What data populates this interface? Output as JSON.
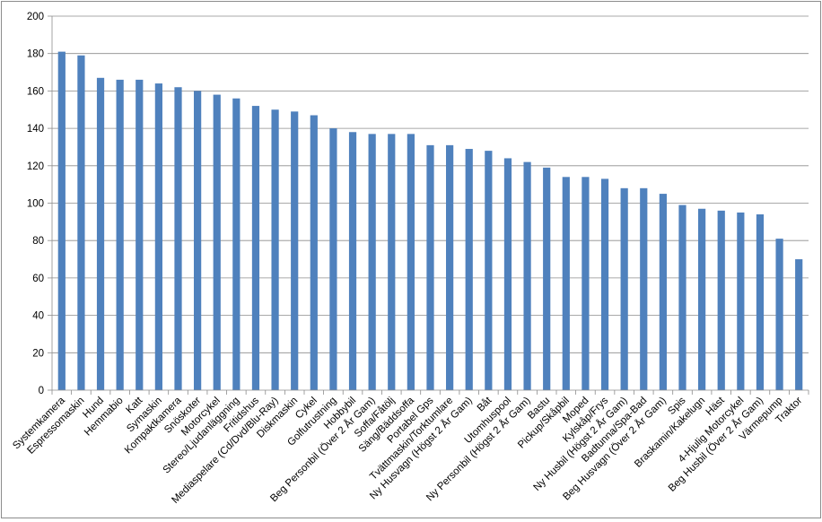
{
  "chart_data": {
    "type": "bar",
    "title": "",
    "xlabel": "",
    "ylabel": "",
    "ylim": [
      0,
      200
    ],
    "yticks": [
      0,
      20,
      40,
      60,
      80,
      100,
      120,
      140,
      160,
      180,
      200
    ],
    "grid": true,
    "legend": "none",
    "bar_color": "#4f81bd",
    "categories": [
      "Systemkamera",
      "Espressomaskin",
      "Hund",
      "Hemmabio",
      "Katt",
      "Symaskin",
      "Kompaktkamera",
      "Snöskoter",
      "Motorcykel",
      "Stereo/Ljudanläggning",
      "Fritidshus",
      "Mediaspelare (Cd/Dvd/Blu-Ray)",
      "Diskmaskin",
      "Cykel",
      "Golfutrustning",
      "Hobbybil",
      "Beg Personbil (Över 2 År Gam)",
      "Soffa/Fåtölj",
      "Säng/Bäddsoffa",
      "Portabel Gps",
      "Tvättmaskin/Torktumlare",
      "Ny Husvagn (Högst 2 År Gam)",
      "Båt",
      "Utomhuspool",
      "Ny Personbil (Högst 2 År Gam)",
      "Bastu",
      "Pickup/Skåpbil",
      "Moped",
      "Kylskåp/Frys",
      "Ny Husbil (Högst 2 År Gam)",
      "Badtunna/Spa-Bad",
      "Beg Husvagn (Över 2 År Gam)",
      "Spis",
      "Braskamin/Kakelugn",
      "Häst",
      "4-Hjulig Motorcykel",
      "Beg Husbil (Över 2 År Gam)",
      "Värmepump",
      "Traktor"
    ],
    "series": [
      {
        "values": [
          181,
          179,
          167,
          166,
          166,
          164,
          162,
          160,
          158,
          156,
          152,
          150,
          149,
          147,
          140,
          138,
          137,
          137,
          137,
          131,
          131,
          129,
          128,
          124,
          122,
          119,
          114,
          114,
          113,
          108,
          108,
          105,
          99,
          97,
          96,
          95,
          94,
          81,
          70
        ]
      }
    ]
  }
}
